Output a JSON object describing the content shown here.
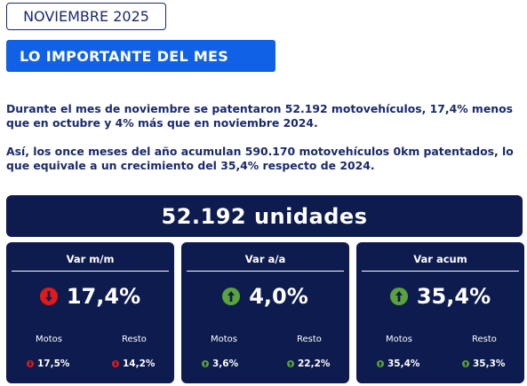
{
  "header": {
    "month": "NOVIEMBRE 2025",
    "title": "LO IMPORTANTE DEL MES"
  },
  "summary": {
    "paragraph1": "Durante el mes de noviembre se patentaron 52.192 motovehículos, 17,4% menos que en octubre y 4% más que en noviembre 2024.",
    "paragraph2": "Así, los once meses del año acumulan 590.170 motovehículos 0km patentados, lo que equivale a un crecimiento del 35,4% respecto de 2024."
  },
  "units": {
    "label": "52.192 unidades"
  },
  "colors": {
    "down": "#e01a1a",
    "up": "#5aa33a",
    "panel": "#0d1b4f",
    "accent": "#1061e6"
  },
  "cards": [
    {
      "title": "Var m/m",
      "value": "17,4%",
      "direction": "down",
      "icon": "down-arrow-icon",
      "motos_label": "Motos",
      "motos_value": "17,5%",
      "motos_direction": "down",
      "resto_label": "Resto",
      "resto_value": "14,2%",
      "resto_direction": "down"
    },
    {
      "title": "Var a/a",
      "value": "4,0%",
      "direction": "up",
      "icon": "up-arrow-icon",
      "motos_label": "Motos",
      "motos_value": "3,6%",
      "motos_direction": "up",
      "resto_label": "Resto",
      "resto_value": "22,2%",
      "resto_direction": "up"
    },
    {
      "title": "Var acum",
      "value": "35,4%",
      "direction": "up",
      "icon": "up-arrow-icon",
      "motos_label": "Motos",
      "motos_value": "35,4%",
      "motos_direction": "up",
      "resto_label": "Resto",
      "resto_value": "35,3%",
      "resto_direction": "up"
    }
  ]
}
